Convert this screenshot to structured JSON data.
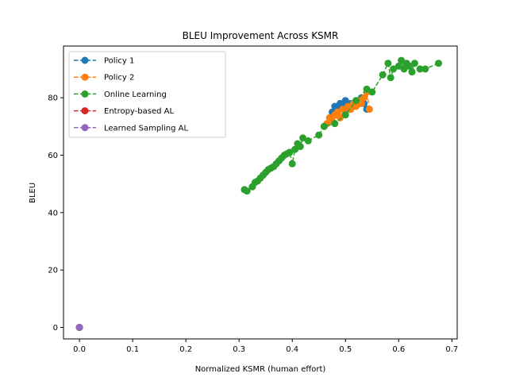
{
  "chart_data": {
    "type": "scatter",
    "title": "BLEU Improvement Across KSMR",
    "xlabel": "Normalized KSMR (human effort)",
    "ylabel": "BLEU",
    "xlim": [
      -0.03,
      0.71
    ],
    "ylim": [
      -4,
      98
    ],
    "xticks": [
      0.0,
      0.1,
      0.2,
      0.3,
      0.4,
      0.5,
      0.6,
      0.7
    ],
    "xtick_labels": [
      "0.0",
      "0.1",
      "0.2",
      "0.3",
      "0.4",
      "0.5",
      "0.6",
      "0.7"
    ],
    "yticks": [
      0,
      20,
      40,
      60,
      80
    ],
    "ytick_labels": [
      "0",
      "20",
      "40",
      "60",
      "80"
    ],
    "grid": false,
    "legend_position": "top-left",
    "series": [
      {
        "name": "Policy 1",
        "color": "#1f77b4",
        "style": "dashed-with-markers",
        "x": [
          0.0,
          0.475,
          0.48,
          0.485,
          0.49,
          0.495,
          0.5,
          0.505,
          0.51,
          0.515,
          0.52,
          0.525,
          0.53,
          0.535,
          0.54
        ],
        "y": [
          0,
          75,
          77,
          76,
          78,
          77,
          79,
          76,
          78,
          77,
          79,
          78,
          80,
          78,
          76
        ]
      },
      {
        "name": "Policy 2",
        "color": "#ff7f0e",
        "style": "dashed-with-markers",
        "x": [
          0.0,
          0.46,
          0.465,
          0.47,
          0.475,
          0.48,
          0.485,
          0.49,
          0.495,
          0.5,
          0.505,
          0.51,
          0.515,
          0.52,
          0.525,
          0.53,
          0.535,
          0.54,
          0.545
        ],
        "y": [
          0,
          70,
          71,
          73,
          72,
          74,
          75,
          73,
          76,
          75,
          77,
          76,
          78,
          77,
          79,
          78,
          80,
          82,
          76
        ]
      },
      {
        "name": "Online Learning",
        "color": "#2ca02c",
        "style": "dashed-with-markers",
        "x": [
          0.0,
          0.31,
          0.315,
          0.325,
          0.33,
          0.335,
          0.34,
          0.345,
          0.35,
          0.355,
          0.36,
          0.365,
          0.37,
          0.375,
          0.38,
          0.385,
          0.39,
          0.395,
          0.4,
          0.405,
          0.41,
          0.415,
          0.42,
          0.43,
          0.45,
          0.46,
          0.48,
          0.5,
          0.52,
          0.54,
          0.55,
          0.57,
          0.58,
          0.585,
          0.59,
          0.6,
          0.605,
          0.61,
          0.615,
          0.62,
          0.625,
          0.63,
          0.64,
          0.65,
          0.675
        ],
        "y": [
          0,
          48,
          47.5,
          49,
          50.5,
          51,
          52,
          53,
          54,
          55,
          55.5,
          56,
          57,
          58,
          59,
          60,
          60.5,
          61,
          57,
          62,
          64,
          63,
          66,
          65,
          67,
          70,
          71,
          74,
          79,
          83,
          82,
          88,
          92,
          87,
          90,
          91,
          93,
          90,
          92,
          91,
          89,
          92,
          90,
          90,
          92
        ]
      },
      {
        "name": "Entropy-based AL",
        "color": "#d62728",
        "style": "dashed-with-markers",
        "x": [
          0.0
        ],
        "y": [
          0
        ]
      },
      {
        "name": "Learned Sampling AL",
        "color": "#9467bd",
        "style": "dashed-with-markers",
        "x": [
          0.0
        ],
        "y": [
          0
        ]
      }
    ]
  }
}
